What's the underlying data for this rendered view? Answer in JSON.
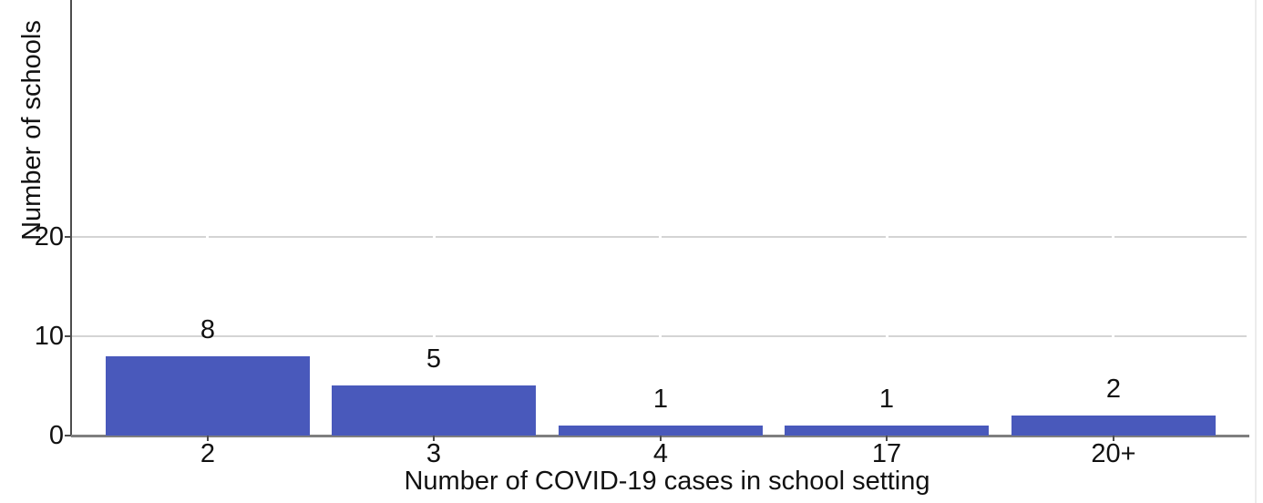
{
  "chart_data": {
    "type": "bar",
    "categories": [
      "2",
      "3",
      "4",
      "17",
      "20+"
    ],
    "values": [
      8,
      5,
      1,
      1,
      2
    ],
    "bar_labels": [
      "8",
      "5",
      "1",
      "1",
      "2"
    ],
    "title": "",
    "xlabel": "Number of COVID-19 cases in school setting",
    "ylabel": "Number of schools",
    "yticks": [
      0,
      10,
      20
    ],
    "ytick_labels": [
      "0",
      "10",
      "20"
    ],
    "ylim": [
      0,
      44
    ],
    "grid": "horizontal gridlines at y-ticks, broken by white gaps at category centers",
    "legend_position": "none",
    "colors": {
      "bar": "#4959bb",
      "gridline": "#d4d4d4",
      "x_axis_line": "#7f7f7f",
      "y_axis_line": "#4d4d4d",
      "tick": "#4d4d4d",
      "text": "#111111"
    }
  }
}
